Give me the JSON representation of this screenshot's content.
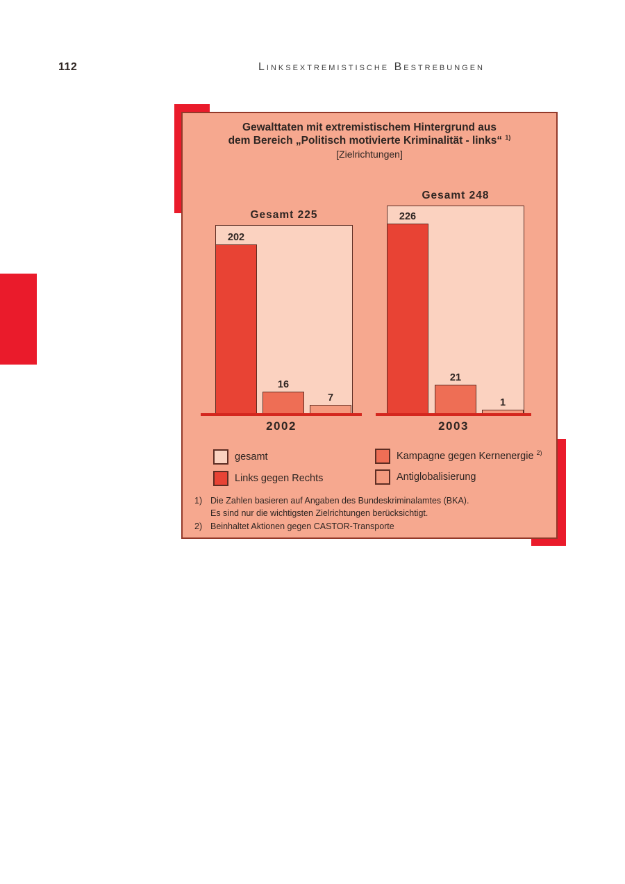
{
  "page": {
    "number": "112",
    "header": "Linksextremistische Bestrebungen"
  },
  "colors": {
    "page_bg": "#ffffff",
    "panel_bg": "#f6a88f",
    "panel_border": "#93392a",
    "deco_red": "#ea1b2b",
    "baseline_red": "#d4271e",
    "text": "#2e2522",
    "bar_border": "#5d2d23"
  },
  "chart_data": {
    "type": "bar",
    "title_line1": "Gewalttaten mit extremistischem Hintergrund aus",
    "title_line2": "dem Bereich „Politisch motivierte Kriminalität - links“",
    "title_footnote_ref": "1)",
    "subtitle": "[Zielrichtungen]",
    "categories": [
      "2002",
      "2003"
    ],
    "totals": {
      "labels": [
        "Gesamt 225",
        "Gesamt 248"
      ],
      "values": [
        225,
        248
      ]
    },
    "series": [
      {
        "name": "gesamt",
        "values": [
          225,
          248
        ],
        "color": "#fbd2c0"
      },
      {
        "name": "Links gegen Rechts",
        "values": [
          202,
          226
        ],
        "color": "#e84334"
      },
      {
        "name": "Kampagne gegen Kernenergie",
        "values": [
          16,
          21
        ],
        "color": "#ee6e55",
        "footnote_ref": "2)"
      },
      {
        "name": "Antiglobalisierung",
        "values": [
          7,
          1
        ],
        "color": "#f49a7e"
      }
    ],
    "legend_position": "bottom",
    "axes": "none, freestanding grouped bars over red baseline",
    "footnotes": [
      {
        "marker": "1)",
        "line1": "Die Zahlen basieren auf Angaben des Bundeskriminalamtes (BKA).",
        "line2": "Es sind nur die wichtigsten Zielrichtungen berücksichtigt."
      },
      {
        "marker": "2)",
        "line1": "Beinhaltet Aktionen gegen CASTOR-Transporte"
      }
    ]
  }
}
